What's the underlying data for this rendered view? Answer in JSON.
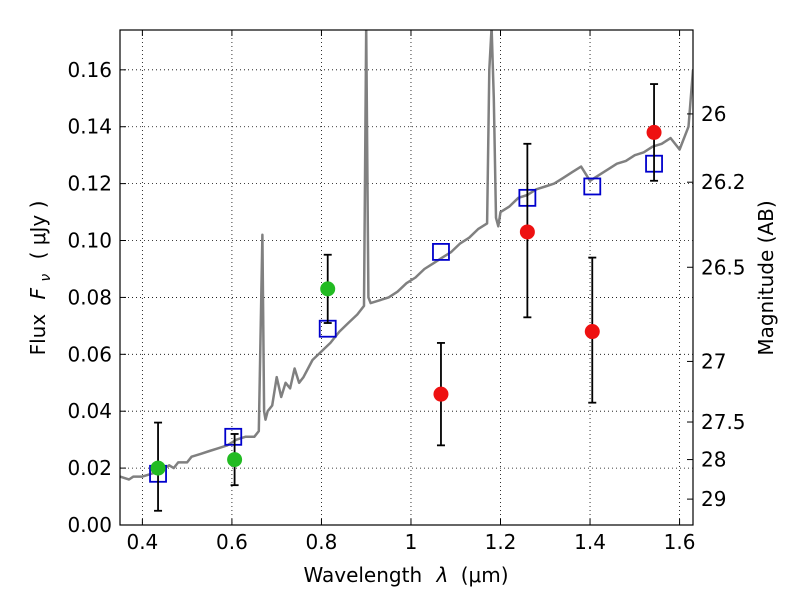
{
  "chart_data": {
    "type": "scatter",
    "xlabel_text": "Wavelength",
    "xlabel_math": "λ",
    "xlabel_unit": "(μm)",
    "ylabel_text": "Flux",
    "ylabel_math": "F",
    "ylabel_sub": "ν",
    "ylabel_unit": "( μJy )",
    "y2label": "Magnitude (AB)",
    "xlim": [
      0.35,
      1.63
    ],
    "ylim": [
      0.0,
      0.174
    ],
    "grid": true,
    "x_ticks": [
      0.4,
      0.6,
      0.8,
      1.0,
      1.2,
      1.4,
      1.6
    ],
    "x_tick_labels": [
      "0.4",
      "0.6",
      "0.8",
      "1",
      "1.2",
      "1.4",
      "1.6"
    ],
    "y_ticks": [
      0.0,
      0.02,
      0.04,
      0.06,
      0.08,
      0.1,
      0.12,
      0.14,
      0.16
    ],
    "y_tick_labels": [
      "0.00",
      "0.02",
      "0.04",
      "0.06",
      "0.08",
      "0.10",
      "0.12",
      "0.14",
      "0.16"
    ],
    "y2_ticks": [
      {
        "flux": 0.1445,
        "label": "26"
      },
      {
        "flux": 0.1205,
        "label": "26.2"
      },
      {
        "flux": 0.0906,
        "label": "26.5"
      },
      {
        "flux": 0.0575,
        "label": "27"
      },
      {
        "flux": 0.0362,
        "label": "27.5"
      },
      {
        "flux": 0.023,
        "label": "28"
      },
      {
        "flux": 0.0091,
        "label": "29"
      }
    ],
    "colors": {
      "model": "#808080",
      "green": "#22bb22",
      "red": "#ee1111",
      "square": "#0000cc",
      "errorbar": "#000000"
    },
    "model_spectrum": [
      [
        0.35,
        0.017
      ],
      [
        0.37,
        0.016
      ],
      [
        0.38,
        0.017
      ],
      [
        0.4,
        0.017
      ],
      [
        0.42,
        0.018
      ],
      [
        0.44,
        0.019
      ],
      [
        0.46,
        0.021
      ],
      [
        0.47,
        0.02
      ],
      [
        0.48,
        0.022
      ],
      [
        0.5,
        0.022
      ],
      [
        0.51,
        0.024
      ],
      [
        0.53,
        0.025
      ],
      [
        0.55,
        0.026
      ],
      [
        0.57,
        0.027
      ],
      [
        0.59,
        0.028
      ],
      [
        0.61,
        0.03
      ],
      [
        0.63,
        0.031
      ],
      [
        0.65,
        0.031
      ],
      [
        0.66,
        0.033
      ],
      [
        0.668,
        0.102
      ],
      [
        0.672,
        0.04
      ],
      [
        0.675,
        0.037
      ],
      [
        0.68,
        0.04
      ],
      [
        0.69,
        0.042
      ],
      [
        0.7,
        0.052
      ],
      [
        0.71,
        0.045
      ],
      [
        0.72,
        0.05
      ],
      [
        0.73,
        0.048
      ],
      [
        0.74,
        0.055
      ],
      [
        0.75,
        0.05
      ],
      [
        0.76,
        0.052
      ],
      [
        0.78,
        0.058
      ],
      [
        0.8,
        0.061
      ],
      [
        0.82,
        0.064
      ],
      [
        0.84,
        0.068
      ],
      [
        0.86,
        0.071
      ],
      [
        0.88,
        0.074
      ],
      [
        0.895,
        0.077
      ],
      [
        0.9,
        0.175
      ],
      [
        0.905,
        0.08
      ],
      [
        0.91,
        0.078
      ],
      [
        0.93,
        0.079
      ],
      [
        0.95,
        0.08
      ],
      [
        0.97,
        0.082
      ],
      [
        0.99,
        0.085
      ],
      [
        1.01,
        0.087
      ],
      [
        1.03,
        0.09
      ],
      [
        1.05,
        0.092
      ],
      [
        1.07,
        0.094
      ],
      [
        1.09,
        0.096
      ],
      [
        1.11,
        0.099
      ],
      [
        1.13,
        0.101
      ],
      [
        1.15,
        0.104
      ],
      [
        1.17,
        0.106
      ],
      [
        1.175,
        0.16
      ],
      [
        1.18,
        0.175
      ],
      [
        1.185,
        0.15
      ],
      [
        1.19,
        0.108
      ],
      [
        1.195,
        0.105
      ],
      [
        1.2,
        0.11
      ],
      [
        1.22,
        0.112
      ],
      [
        1.24,
        0.115
      ],
      [
        1.26,
        0.116
      ],
      [
        1.28,
        0.118
      ],
      [
        1.3,
        0.119
      ],
      [
        1.32,
        0.12
      ],
      [
        1.34,
        0.122
      ],
      [
        1.36,
        0.124
      ],
      [
        1.38,
        0.126
      ],
      [
        1.4,
        0.121
      ],
      [
        1.42,
        0.123
      ],
      [
        1.44,
        0.125
      ],
      [
        1.46,
        0.127
      ],
      [
        1.48,
        0.128
      ],
      [
        1.5,
        0.13
      ],
      [
        1.52,
        0.131
      ],
      [
        1.54,
        0.133
      ],
      [
        1.56,
        0.134
      ],
      [
        1.58,
        0.136
      ],
      [
        1.6,
        0.132
      ],
      [
        1.62,
        0.14
      ],
      [
        1.63,
        0.16
      ]
    ],
    "photometry_squares": [
      {
        "x": 0.435,
        "y": 0.018
      },
      {
        "x": 0.603,
        "y": 0.031
      },
      {
        "x": 0.814,
        "y": 0.069
      },
      {
        "x": 1.067,
        "y": 0.096
      },
      {
        "x": 1.26,
        "y": 0.115
      },
      {
        "x": 1.405,
        "y": 0.119
      },
      {
        "x": 1.543,
        "y": 0.127
      }
    ],
    "green_points": [
      {
        "x": 0.435,
        "y": 0.02,
        "ylo": 0.005,
        "yhi": 0.036
      },
      {
        "x": 0.606,
        "y": 0.023,
        "ylo": 0.014,
        "yhi": 0.032
      },
      {
        "x": 0.814,
        "y": 0.083,
        "ylo": 0.071,
        "yhi": 0.095
      }
    ],
    "red_points": [
      {
        "x": 1.067,
        "y": 0.046,
        "ylo": 0.028,
        "yhi": 0.064
      },
      {
        "x": 1.26,
        "y": 0.103,
        "ylo": 0.073,
        "yhi": 0.134
      },
      {
        "x": 1.405,
        "y": 0.068,
        "ylo": 0.043,
        "yhi": 0.094
      },
      {
        "x": 1.543,
        "y": 0.138,
        "ylo": 0.121,
        "yhi": 0.155
      }
    ]
  }
}
